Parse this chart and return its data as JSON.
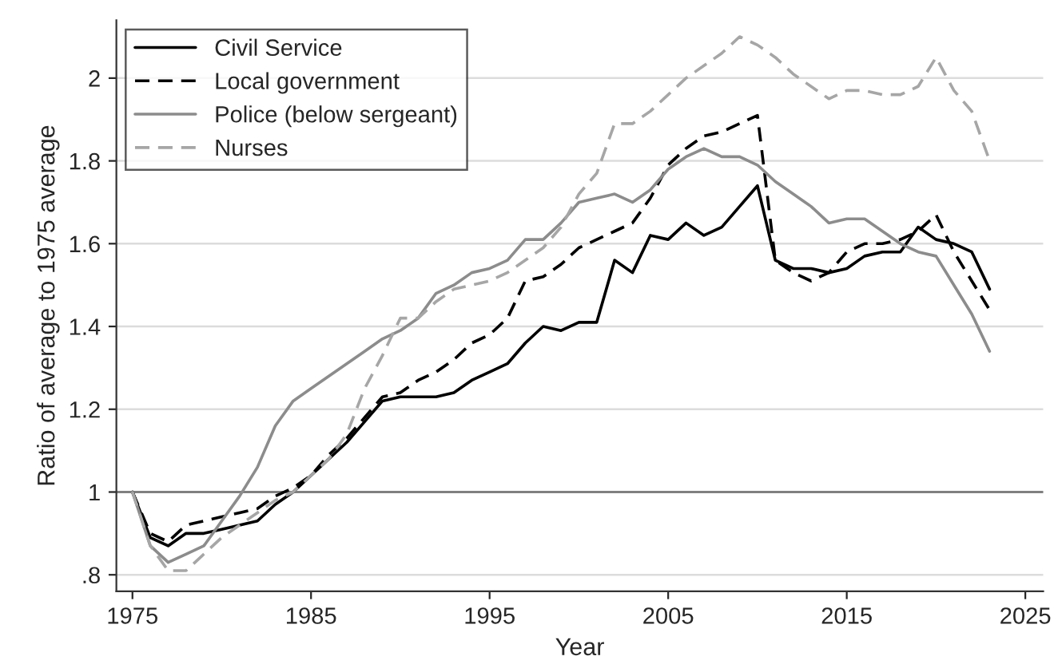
{
  "chart_data": {
    "type": "line",
    "xlabel": "Year",
    "ylabel": "Ratio of average to 1975 average",
    "x": [
      1975,
      1976,
      1977,
      1978,
      1979,
      1980,
      1981,
      1982,
      1983,
      1984,
      1985,
      1986,
      1987,
      1988,
      1989,
      1990,
      1991,
      1992,
      1993,
      1994,
      1995,
      1996,
      1997,
      1998,
      1999,
      2000,
      2001,
      2002,
      2003,
      2004,
      2005,
      2006,
      2007,
      2008,
      2009,
      2010,
      2011,
      2012,
      2013,
      2014,
      2015,
      2016,
      2017,
      2018,
      2019,
      2020,
      2021,
      2022,
      2023
    ],
    "series": [
      {
        "name": "Civil Service",
        "color": "#000000",
        "line_style": "solid",
        "values": [
          1.0,
          0.89,
          0.87,
          0.9,
          0.9,
          0.91,
          0.92,
          0.93,
          0.97,
          1.0,
          1.04,
          1.08,
          1.12,
          1.17,
          1.22,
          1.23,
          1.23,
          1.23,
          1.24,
          1.27,
          1.29,
          1.31,
          1.36,
          1.4,
          1.39,
          1.41,
          1.41,
          1.56,
          1.53,
          1.62,
          1.61,
          1.65,
          1.62,
          1.64,
          1.69,
          1.74,
          1.56,
          1.54,
          1.54,
          1.53,
          1.54,
          1.57,
          1.58,
          1.58,
          1.64,
          1.61,
          1.6,
          1.58,
          1.49
        ]
      },
      {
        "name": "Local government",
        "color": "#000000",
        "line_style": "dashed",
        "values": [
          1.0,
          0.9,
          0.88,
          0.92,
          0.93,
          0.94,
          0.95,
          0.96,
          0.99,
          1.01,
          1.04,
          1.09,
          1.13,
          1.18,
          1.23,
          1.24,
          1.27,
          1.29,
          1.32,
          1.36,
          1.38,
          1.42,
          1.51,
          1.52,
          1.55,
          1.59,
          1.61,
          1.63,
          1.65,
          1.71,
          1.79,
          1.83,
          1.86,
          1.87,
          1.89,
          1.91,
          1.56,
          1.53,
          1.51,
          1.53,
          1.58,
          1.6,
          1.6,
          1.61,
          1.63,
          1.67,
          1.58,
          1.51,
          1.44
        ]
      },
      {
        "name": "Police (below sergeant)",
        "color": "#8c8c8c",
        "line_style": "solid",
        "values": [
          1.0,
          0.87,
          0.83,
          0.85,
          0.87,
          0.93,
          0.99,
          1.06,
          1.16,
          1.22,
          1.25,
          1.28,
          1.31,
          1.34,
          1.37,
          1.39,
          1.42,
          1.48,
          1.5,
          1.53,
          1.54,
          1.56,
          1.61,
          1.61,
          1.65,
          1.7,
          1.71,
          1.72,
          1.7,
          1.73,
          1.78,
          1.81,
          1.83,
          1.81,
          1.81,
          1.79,
          1.75,
          1.72,
          1.69,
          1.65,
          1.66,
          1.66,
          1.63,
          1.6,
          1.58,
          1.57,
          1.5,
          1.43,
          1.34
        ]
      },
      {
        "name": "Nurses",
        "color": "#a6a6a6",
        "line_style": "dashed",
        "values": [
          1.0,
          0.87,
          0.81,
          0.81,
          0.85,
          0.89,
          0.92,
          0.95,
          0.98,
          1.0,
          1.04,
          1.08,
          1.14,
          1.25,
          1.33,
          1.42,
          1.42,
          1.46,
          1.49,
          1.5,
          1.51,
          1.53,
          1.56,
          1.59,
          1.64,
          1.72,
          1.77,
          1.89,
          1.89,
          1.92,
          1.96,
          2.0,
          2.03,
          2.06,
          2.1,
          2.08,
          2.05,
          2.01,
          1.98,
          1.95,
          1.97,
          1.97,
          1.96,
          1.96,
          1.98,
          2.05,
          1.97,
          1.92,
          1.8
        ]
      }
    ],
    "xlim": [
      1974.1,
      2026
    ],
    "ylim": [
      0.76,
      2.14
    ],
    "xticks": [
      1975,
      1985,
      1995,
      2005,
      2015,
      2025
    ],
    "yticks": [
      {
        "value": 0.8,
        "label": ".8"
      },
      1,
      1.2,
      1.4,
      1.6,
      1.8,
      2
    ],
    "ref_lines": [
      {
        "axis": "y",
        "value": 1,
        "color": "#808080"
      }
    ],
    "grid": "y",
    "legend": "top left"
  }
}
